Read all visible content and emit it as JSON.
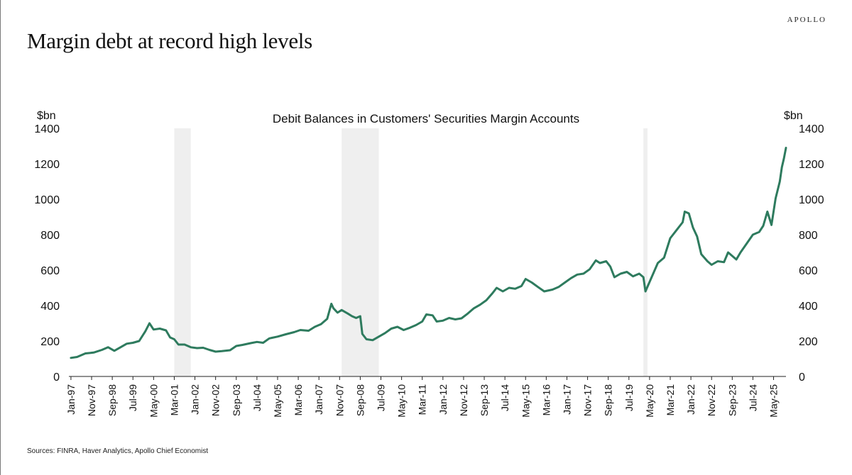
{
  "brand": "APOLLO",
  "headline": "Margin debt at record high levels",
  "source": "Sources: FINRA, Haver Analytics, Apollo Chief Economist",
  "colors": {
    "line": "#2e7b5e",
    "recession": "#efefef"
  },
  "chart_data": {
    "type": "line",
    "title": "Debit Balances in Customers' Securities Margin Accounts",
    "ylabel_left": "$bn",
    "ylabel_right": "$bn",
    "ylim": [
      0,
      1400
    ],
    "yticks": [
      0,
      200,
      400,
      600,
      800,
      1000,
      1200,
      1400
    ],
    "grid": false,
    "xlim": [
      "1996-12",
      "2025-11"
    ],
    "x_tick_labels": [
      "Jan-97",
      "Nov-97",
      "Sep-98",
      "Jul-99",
      "May-00",
      "Mar-01",
      "Jan-02",
      "Nov-02",
      "Sep-03",
      "Jul-04",
      "May-05",
      "Mar-06",
      "Jan-07",
      "Nov-07",
      "Sep-08",
      "Jul-09",
      "May-10",
      "Mar-11",
      "Jan-12",
      "Nov-12",
      "Sep-13",
      "Jul-14",
      "May-15",
      "Mar-16",
      "Jan-17",
      "Nov-17",
      "Sep-18",
      "Jul-19",
      "May-20",
      "Mar-21",
      "Jan-22",
      "Nov-22",
      "Sep-23",
      "Jul-24",
      "May-25"
    ],
    "recessions": [
      {
        "start": "2001-03",
        "end": "2001-11"
      },
      {
        "start": "2007-12",
        "end": "2009-06"
      },
      {
        "start": "2020-02",
        "end": "2020-04"
      }
    ],
    "series": [
      {
        "name": "",
        "color": "#2e7b5e",
        "points": [
          [
            "1997-01",
            105
          ],
          [
            "1997-04",
            110
          ],
          [
            "1997-08",
            130
          ],
          [
            "1997-12",
            135
          ],
          [
            "1998-04",
            150
          ],
          [
            "1998-07",
            165
          ],
          [
            "1998-10",
            145
          ],
          [
            "1999-01",
            165
          ],
          [
            "1999-04",
            185
          ],
          [
            "1999-07",
            190
          ],
          [
            "1999-10",
            200
          ],
          [
            "2000-01",
            255
          ],
          [
            "2000-03",
            300
          ],
          [
            "2000-05",
            265
          ],
          [
            "2000-08",
            270
          ],
          [
            "2000-11",
            260
          ],
          [
            "2001-01",
            220
          ],
          [
            "2001-03",
            210
          ],
          [
            "2001-05",
            180
          ],
          [
            "2001-08",
            180
          ],
          [
            "2001-11",
            165
          ],
          [
            "2002-02",
            160
          ],
          [
            "2002-05",
            162
          ],
          [
            "2002-08",
            150
          ],
          [
            "2002-11",
            140
          ],
          [
            "2003-02",
            143
          ],
          [
            "2003-06",
            148
          ],
          [
            "2003-09",
            172
          ],
          [
            "2003-12",
            178
          ],
          [
            "2004-04",
            188
          ],
          [
            "2004-07",
            195
          ],
          [
            "2004-10",
            190
          ],
          [
            "2005-01",
            215
          ],
          [
            "2005-05",
            225
          ],
          [
            "2005-09",
            238
          ],
          [
            "2006-01",
            250
          ],
          [
            "2006-04",
            262
          ],
          [
            "2006-08",
            258
          ],
          [
            "2006-11",
            280
          ],
          [
            "2007-02",
            295
          ],
          [
            "2007-05",
            325
          ],
          [
            "2007-07",
            410
          ],
          [
            "2007-08",
            385
          ],
          [
            "2007-10",
            360
          ],
          [
            "2007-12",
            375
          ],
          [
            "2008-03",
            355
          ],
          [
            "2008-05",
            340
          ],
          [
            "2008-07",
            330
          ],
          [
            "2008-09",
            340
          ],
          [
            "2008-10",
            240
          ],
          [
            "2008-12",
            210
          ],
          [
            "2009-03",
            205
          ],
          [
            "2009-06",
            225
          ],
          [
            "2009-09",
            245
          ],
          [
            "2009-12",
            270
          ],
          [
            "2010-03",
            280
          ],
          [
            "2010-06",
            262
          ],
          [
            "2010-09",
            275
          ],
          [
            "2010-12",
            290
          ],
          [
            "2011-03",
            310
          ],
          [
            "2011-05",
            350
          ],
          [
            "2011-08",
            345
          ],
          [
            "2011-10",
            310
          ],
          [
            "2012-01",
            315
          ],
          [
            "2012-04",
            330
          ],
          [
            "2012-07",
            322
          ],
          [
            "2012-10",
            328
          ],
          [
            "2013-01",
            355
          ],
          [
            "2013-04",
            385
          ],
          [
            "2013-07",
            405
          ],
          [
            "2013-10",
            430
          ],
          [
            "2014-01",
            470
          ],
          [
            "2014-03",
            500
          ],
          [
            "2014-06",
            480
          ],
          [
            "2014-09",
            500
          ],
          [
            "2014-12",
            495
          ],
          [
            "2015-03",
            510
          ],
          [
            "2015-05",
            550
          ],
          [
            "2015-08",
            530
          ],
          [
            "2015-11",
            505
          ],
          [
            "2016-02",
            480
          ],
          [
            "2016-06",
            490
          ],
          [
            "2016-09",
            505
          ],
          [
            "2016-12",
            530
          ],
          [
            "2017-03",
            555
          ],
          [
            "2017-06",
            575
          ],
          [
            "2017-09",
            580
          ],
          [
            "2017-12",
            605
          ],
          [
            "2018-03",
            655
          ],
          [
            "2018-05",
            640
          ],
          [
            "2018-08",
            650
          ],
          [
            "2018-10",
            620
          ],
          [
            "2018-12",
            560
          ],
          [
            "2019-03",
            580
          ],
          [
            "2019-06",
            590
          ],
          [
            "2019-09",
            565
          ],
          [
            "2019-12",
            580
          ],
          [
            "2020-02",
            560
          ],
          [
            "2020-03",
            480
          ],
          [
            "2020-06",
            560
          ],
          [
            "2020-09",
            640
          ],
          [
            "2020-12",
            670
          ],
          [
            "2021-03",
            780
          ],
          [
            "2021-06",
            825
          ],
          [
            "2021-09",
            870
          ],
          [
            "2021-10",
            930
          ],
          [
            "2021-12",
            920
          ],
          [
            "2022-02",
            840
          ],
          [
            "2022-04",
            790
          ],
          [
            "2022-06",
            690
          ],
          [
            "2022-09",
            650
          ],
          [
            "2022-11",
            630
          ],
          [
            "2023-02",
            650
          ],
          [
            "2023-05",
            645
          ],
          [
            "2023-07",
            700
          ],
          [
            "2023-09",
            680
          ],
          [
            "2023-11",
            660
          ],
          [
            "2024-01",
            700
          ],
          [
            "2024-04",
            750
          ],
          [
            "2024-07",
            800
          ],
          [
            "2024-10",
            815
          ],
          [
            "2024-12",
            850
          ],
          [
            "2025-02",
            930
          ],
          [
            "2025-04",
            855
          ],
          [
            "2025-06",
            1005
          ],
          [
            "2025-08",
            1100
          ],
          [
            "2025-09",
            1180
          ],
          [
            "2025-10",
            1230
          ],
          [
            "2025-11",
            1290
          ]
        ]
      }
    ]
  }
}
